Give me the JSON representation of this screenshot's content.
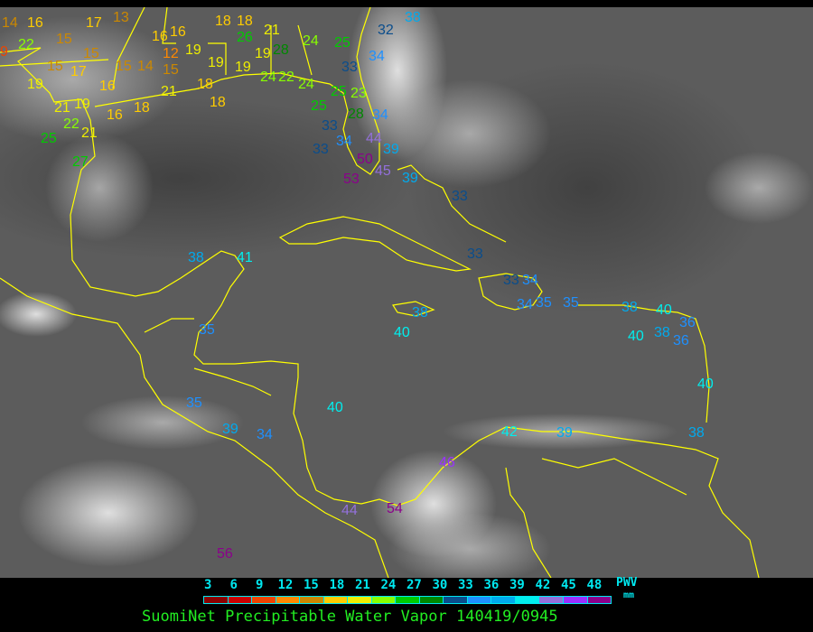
{
  "title": "SuomiNet Precipitable Water Vapor 140419/0945",
  "legend": {
    "unit": "PWV",
    "unit_sub": "mm",
    "ticks": [
      "3",
      "6",
      "9",
      "12",
      "15",
      "18",
      "21",
      "24",
      "27",
      "30",
      "33",
      "36",
      "39",
      "42",
      "45",
      "48"
    ],
    "colors": [
      "#8b0000",
      "#cc0000",
      "#ee4400",
      "#ff8800",
      "#cc8800",
      "#ffcc00",
      "#eeee00",
      "#88ff00",
      "#00cc00",
      "#008800",
      "#0a4d8c",
      "#1e90ff",
      "#00aaee",
      "#00eeee",
      "#9370db",
      "#9b30ff",
      "#8b008b"
    ]
  },
  "map": {
    "background": "infrared satellite imagery",
    "coastline_color": "#ffff00",
    "stations": [
      "14",
      "16",
      "17",
      "13",
      "22",
      "9",
      "15",
      "15",
      "15",
      "17",
      "15",
      "14",
      "12",
      "15",
      "16",
      "16",
      "19",
      "19",
      "19",
      "16",
      "21",
      "18",
      "18",
      "18",
      "16",
      "21",
      "19",
      "22",
      "25",
      "21",
      "27",
      "18",
      "18",
      "21",
      "26",
      "19",
      "19",
      "28",
      "24",
      "25",
      "24",
      "22",
      "24",
      "25",
      "23",
      "28",
      "25",
      "34",
      "33",
      "34",
      "44",
      "50",
      "33",
      "53",
      "45",
      "39",
      "32",
      "38",
      "34",
      "33",
      "39",
      "33",
      "38",
      "41",
      "33",
      "33",
      "34",
      "34",
      "35",
      "35",
      "38",
      "40",
      "38",
      "36",
      "40",
      "36",
      "38",
      "40",
      "35",
      "35",
      "40",
      "39",
      "34",
      "42",
      "39",
      "38",
      "40",
      "46",
      "44",
      "54",
      "56"
    ]
  }
}
